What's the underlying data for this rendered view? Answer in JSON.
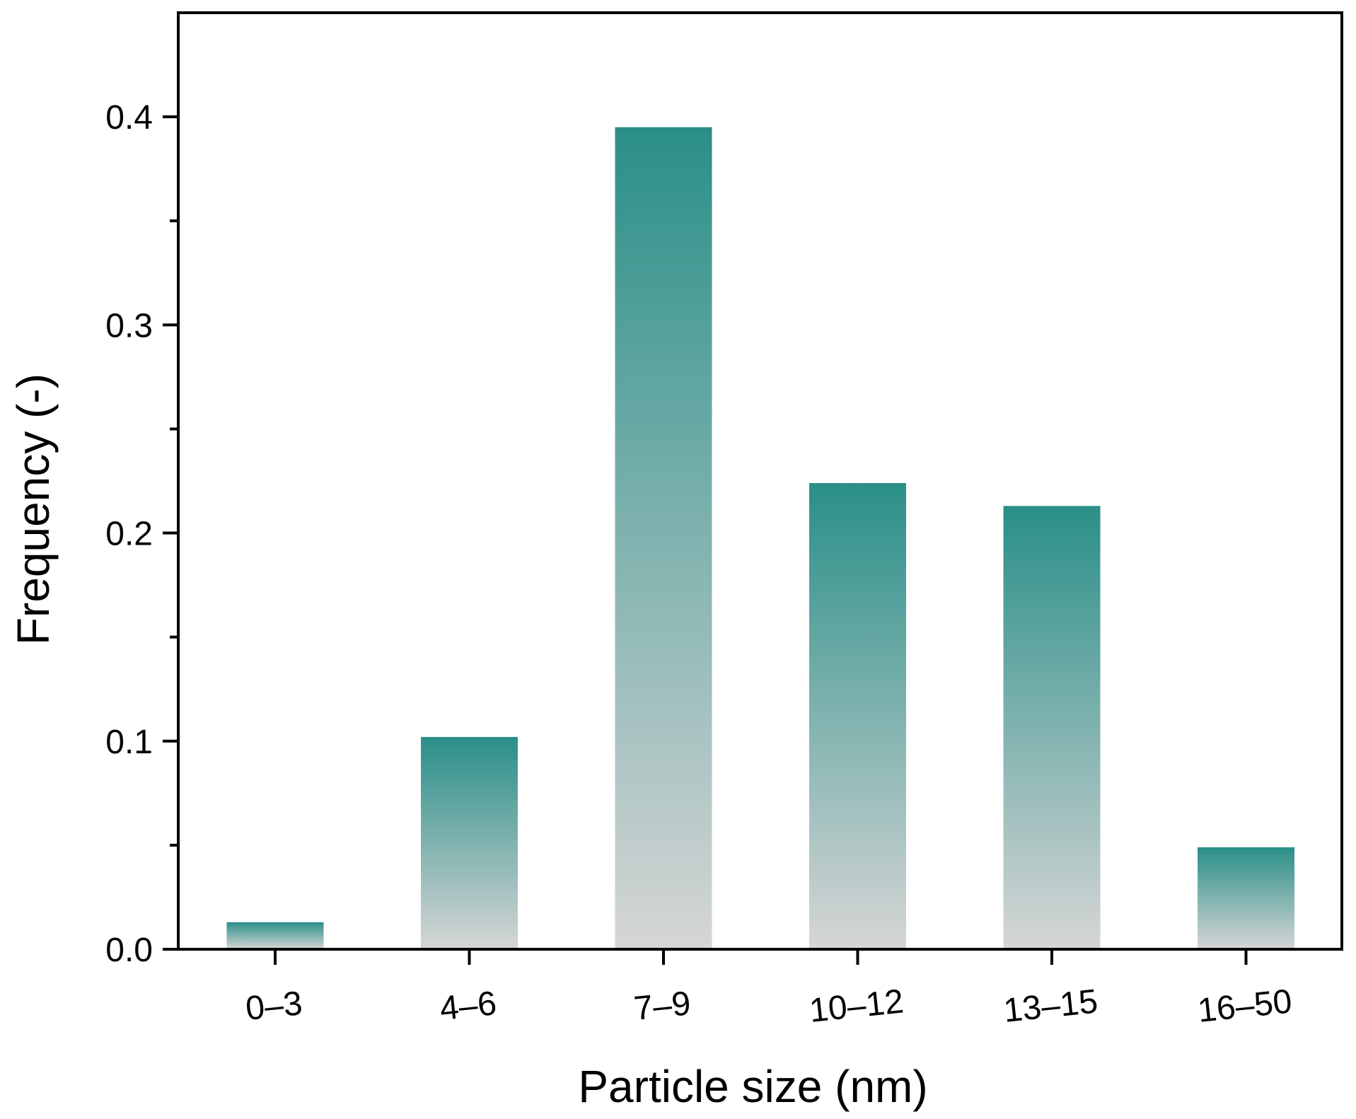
{
  "chart_data": {
    "type": "bar",
    "title": "",
    "xlabel": "Particle size (nm)",
    "ylabel": "Frequency (-)",
    "categories": [
      "0–3",
      "4–6",
      "7–9",
      "10–12",
      "13–15",
      "16–50"
    ],
    "values": [
      0.013,
      0.102,
      0.395,
      0.224,
      0.213,
      0.049
    ],
    "ylim": [
      0,
      0.45
    ],
    "yticks": [
      "0.0",
      "0.1",
      "0.2",
      "0.3",
      "0.4"
    ],
    "grid": false,
    "legend": "none",
    "bar_color_top": "#2a8f88",
    "bar_color_bottom": "#d6d6d6",
    "axis_color": "#000000"
  }
}
